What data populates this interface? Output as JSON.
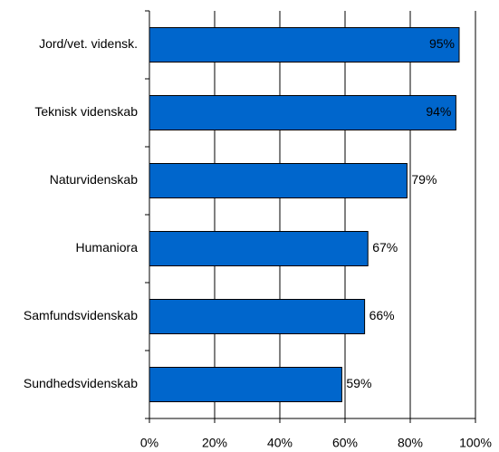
{
  "chart_data": {
    "type": "hbar",
    "categories": [
      "Jord/vet. vidensk.",
      "Teknisk videnskab",
      "Naturvidenskab",
      "Humaniora",
      "Samfundsvidenskab",
      "Sundhedsvidenskab"
    ],
    "values": [
      95,
      94,
      79,
      67,
      66,
      59
    ],
    "value_labels": [
      "95%",
      "94%",
      "79%",
      "67%",
      "66%",
      "59%"
    ],
    "color": "#0066cc",
    "xlim": [
      0,
      100
    ],
    "xticks": [
      {
        "value": 0,
        "label": "0%"
      },
      {
        "value": 20,
        "label": "20%"
      },
      {
        "value": 40,
        "label": "40%"
      },
      {
        "value": 60,
        "label": "60%"
      },
      {
        "value": 80,
        "label": "80%"
      },
      {
        "value": 100,
        "label": "100%"
      }
    ],
    "grid": true
  }
}
